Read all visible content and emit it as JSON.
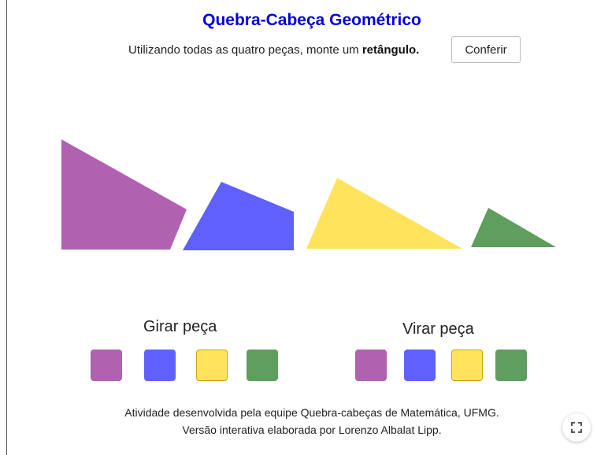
{
  "header": {
    "title": "Quebra-Cabeça Geométrico",
    "title_color": "#0000dd",
    "instruction_prefix": "Utilizando todas as quatro peças, monte um ",
    "instruction_bold": "retângulo.",
    "check_button": "Conferir"
  },
  "pieces": [
    {
      "name": "purple-piece",
      "color": "#b062b0"
    },
    {
      "name": "blue-piece",
      "color": "#6060ff"
    },
    {
      "name": "yellow-piece",
      "color": "#ffe35c"
    },
    {
      "name": "green-piece",
      "color": "#5f9e5f"
    }
  ],
  "controls": {
    "rotate_label": "Girar peça",
    "flip_label": "Virar peça"
  },
  "footer": {
    "line1": "Atividade desenvolvida pela equipe Quebra-cabeças de Matemática, UFMG.",
    "line2": "Versão interativa elaborada por Lorenzo Albalat Lipp."
  },
  "icons": {
    "fullscreen": "fullscreen-icon"
  }
}
